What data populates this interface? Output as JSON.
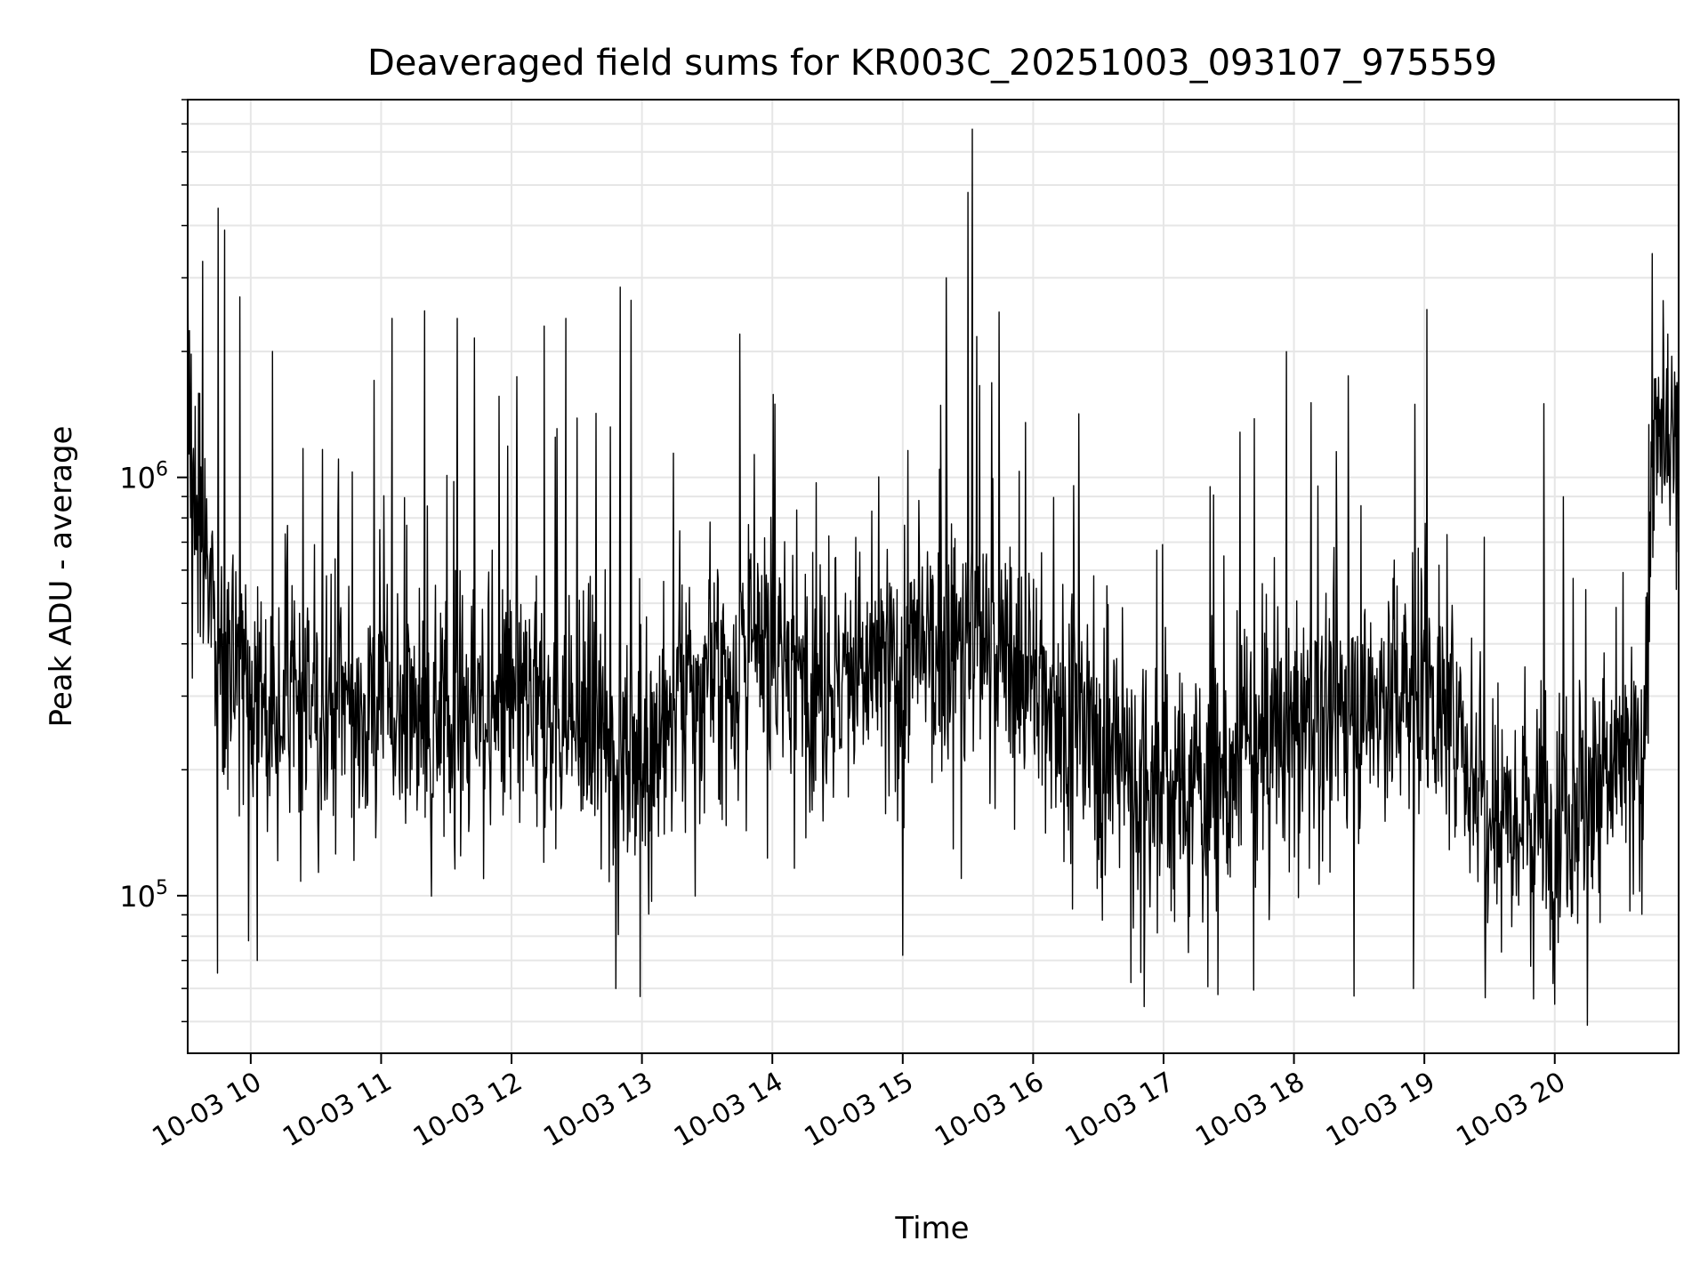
{
  "chart_data": {
    "type": "line",
    "title": "Deaveraged field sums for KR003C_20251003_093107_975559",
    "xlabel": "Time",
    "ylabel": "Peak ADU - average",
    "y_scale": "log",
    "ylim": [
      42000,
      8000000
    ],
    "xlim": [
      "2025-10-03 09:31",
      "2025-10-03 20:57"
    ],
    "x_ticks": [
      {
        "value": "2025-10-03 10:00",
        "label": "10-03 10"
      },
      {
        "value": "2025-10-03 11:00",
        "label": "10-03 11"
      },
      {
        "value": "2025-10-03 12:00",
        "label": "10-03 12"
      },
      {
        "value": "2025-10-03 13:00",
        "label": "10-03 13"
      },
      {
        "value": "2025-10-03 14:00",
        "label": "10-03 14"
      },
      {
        "value": "2025-10-03 15:00",
        "label": "10-03 15"
      },
      {
        "value": "2025-10-03 16:00",
        "label": "10-03 16"
      },
      {
        "value": "2025-10-03 17:00",
        "label": "10-03 17"
      },
      {
        "value": "2025-10-03 18:00",
        "label": "10-03 18"
      },
      {
        "value": "2025-10-03 19:00",
        "label": "10-03 19"
      },
      {
        "value": "2025-10-03 20:00",
        "label": "10-03 20"
      }
    ],
    "y_ticks": [
      {
        "value": 100000,
        "base": "10",
        "exp": "5"
      },
      {
        "value": 1000000,
        "base": "10",
        "exp": "6"
      }
    ],
    "grid": true,
    "line_color": "#000000",
    "series": [
      {
        "baseline": {
          "x": [
            "2025-10-03 09:31",
            "2025-10-03 09:45",
            "2025-10-03 10:00",
            "2025-10-03 10:30",
            "2025-10-03 11:00",
            "2025-10-03 11:30",
            "2025-10-03 12:00",
            "2025-10-03 12:30",
            "2025-10-03 13:00",
            "2025-10-03 13:30",
            "2025-10-03 14:00",
            "2025-10-03 14:30",
            "2025-10-03 15:00",
            "2025-10-03 15:30",
            "2025-10-03 16:00",
            "2025-10-03 16:30",
            "2025-10-03 17:00",
            "2025-10-03 17:30",
            "2025-10-03 18:00",
            "2025-10-03 18:30",
            "2025-10-03 19:00",
            "2025-10-03 19:30",
            "2025-10-03 20:00",
            "2025-10-03 20:30",
            "2025-10-03 20:40",
            "2025-10-03 20:45",
            "2025-10-03 20:57"
          ],
          "y": [
            1200000,
            380000,
            300000,
            270000,
            290000,
            280000,
            280000,
            250000,
            220000,
            330000,
            380000,
            320000,
            350000,
            420000,
            330000,
            230000,
            180000,
            190000,
            260000,
            280000,
            330000,
            170000,
            160000,
            200000,
            200000,
            1100000,
            1100000
          ]
        },
        "peaks": [
          {
            "x": "2025-10-03 09:45",
            "y": 4400000
          },
          {
            "x": "2025-10-03 09:48",
            "y": 3900000
          },
          {
            "x": "2025-10-03 09:55",
            "y": 2700000
          },
          {
            "x": "2025-10-03 10:10",
            "y": 2000000
          },
          {
            "x": "2025-10-03 11:05",
            "y": 2400000
          },
          {
            "x": "2025-10-03 11:20",
            "y": 2500000
          },
          {
            "x": "2025-10-03 11:35",
            "y": 2400000
          },
          {
            "x": "2025-10-03 12:15",
            "y": 2300000
          },
          {
            "x": "2025-10-03 12:25",
            "y": 2400000
          },
          {
            "x": "2025-10-03 12:50",
            "y": 2850000
          },
          {
            "x": "2025-10-03 12:55",
            "y": 2650000
          },
          {
            "x": "2025-10-03 13:45",
            "y": 2200000
          },
          {
            "x": "2025-10-03 15:20",
            "y": 3000000
          },
          {
            "x": "2025-10-03 15:30",
            "y": 4800000
          },
          {
            "x": "2025-10-03 15:32",
            "y": 6800000
          },
          {
            "x": "2025-10-03 18:25",
            "y": 1750000
          },
          {
            "x": "2025-10-03 19:55",
            "y": 1500000
          },
          {
            "x": "2025-10-03 20:52",
            "y": 2200000
          }
        ],
        "dips": [
          {
            "x": "2025-10-03 09:59",
            "y": 78000
          },
          {
            "x": "2025-10-03 10:03",
            "y": 70000
          },
          {
            "x": "2025-10-03 12:48",
            "y": 60000
          },
          {
            "x": "2025-10-03 15:00",
            "y": 72000
          },
          {
            "x": "2025-10-03 16:45",
            "y": 62000
          },
          {
            "x": "2025-10-03 17:25",
            "y": 58000
          },
          {
            "x": "2025-10-03 18:55",
            "y": 60000
          },
          {
            "x": "2025-10-03 19:28",
            "y": 57000
          },
          {
            "x": "2025-10-03 20:00",
            "y": 55000
          },
          {
            "x": "2025-10-03 20:15",
            "y": 49000
          }
        ]
      }
    ]
  }
}
